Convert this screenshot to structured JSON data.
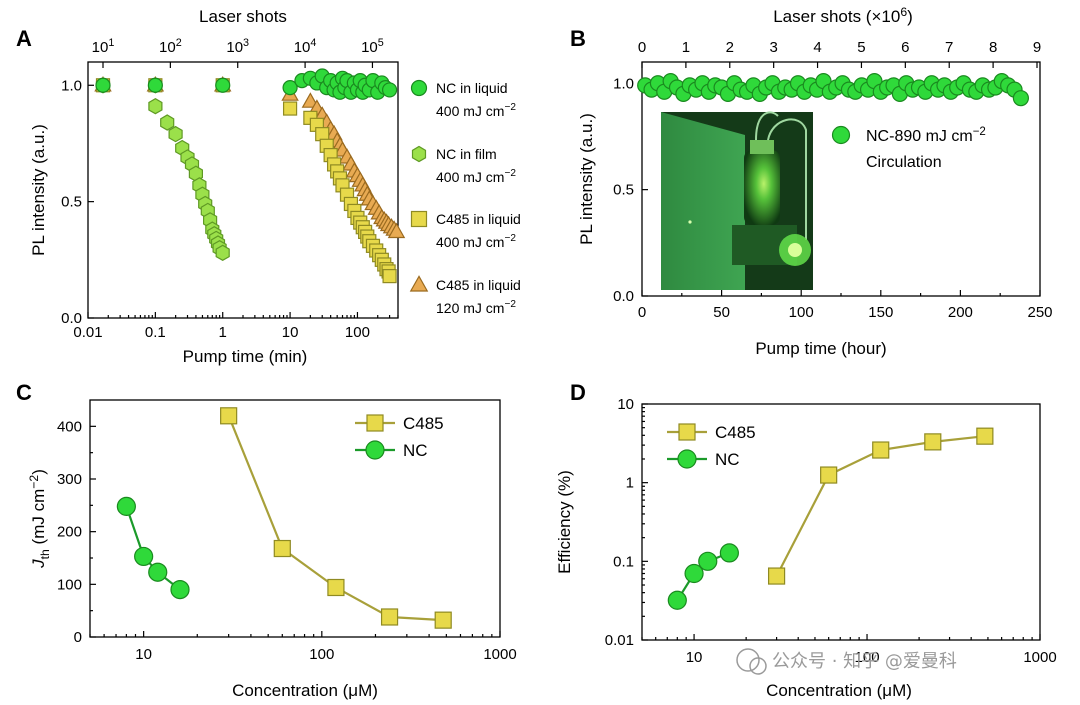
{
  "colors": {
    "nc": "#2fd93a",
    "nc_edge": "#1a8a1f",
    "ncfilm": "#9be04a",
    "ncfilm_edge": "#5f9a24",
    "c485": "#e7d94a",
    "c485_edge": "#8f8a22",
    "c485low": "#e8aa52",
    "c485low_edge": "#9a6a1f",
    "c485_line": "#a8a03a",
    "nc_line": "#1b9a2a"
  },
  "watermark": "公众号 · 知乎 @爱曼科",
  "chart_data": [
    {
      "panel": "A",
      "type": "scatter",
      "xlabel": "Pump time (min)",
      "ylabel": "PL intensity (a.u.)",
      "x2label": "Laser shots",
      "xscale": "log",
      "xlim": [
        0.01,
        400
      ],
      "ylim": [
        0,
        1.1
      ],
      "xticks": [
        "0.01",
        "0.1",
        "1",
        "10",
        "100"
      ],
      "yticks": [
        "0.0",
        "0.5",
        "1.0"
      ],
      "x2ticks": [
        {
          "b": "10",
          "e": "1"
        },
        {
          "b": "10",
          "e": "2"
        },
        {
          "b": "10",
          "e": "3"
        },
        {
          "b": "10",
          "e": "4"
        },
        {
          "b": "10",
          "e": "5"
        }
      ],
      "legend": [
        {
          "l1": "NC in liquid",
          "l2": "400 mJ cm",
          "sup": "−2"
        },
        {
          "l1": "NC in film",
          "l2": "400 mJ cm",
          "sup": "−2"
        },
        {
          "l1": "C485 in liquid",
          "l2": "400 mJ cm",
          "sup": "−2"
        },
        {
          "l1": "C485 in liquid",
          "l2": "120 mJ cm",
          "sup": "−2"
        }
      ],
      "series": [
        {
          "key": "nc_liquid",
          "marker": "circle",
          "x": [
            0.0167,
            0.1,
            1,
            10,
            15,
            20,
            25,
            30,
            35,
            40,
            45,
            50,
            55,
            60,
            65,
            70,
            80,
            90,
            100,
            110,
            120,
            130,
            150,
            170,
            200,
            230,
            260,
            300
          ],
          "y": [
            1.0,
            1.0,
            1.0,
            0.99,
            1.02,
            1.03,
            1.01,
            1.04,
            0.99,
            1.02,
            0.98,
            1.01,
            0.97,
            1.03,
            0.99,
            1.02,
            0.97,
            1.01,
            0.98,
            1.02,
            0.97,
            1.0,
            0.98,
            1.02,
            0.97,
            1.01,
            0.99,
            0.98
          ]
        },
        {
          "key": "nc_film",
          "marker": "hexagon",
          "x": [
            0.0167,
            0.1,
            0.1,
            0.15,
            0.2,
            0.25,
            0.3,
            0.35,
            0.4,
            0.45,
            0.5,
            0.55,
            0.6,
            0.65,
            0.7,
            0.75,
            0.8,
            0.85,
            0.9,
            1.0
          ],
          "y": [
            1.0,
            1.0,
            0.91,
            0.84,
            0.79,
            0.73,
            0.69,
            0.66,
            0.62,
            0.57,
            0.53,
            0.49,
            0.46,
            0.42,
            0.38,
            0.36,
            0.34,
            0.32,
            0.3,
            0.28
          ]
        },
        {
          "key": "c485_400",
          "marker": "square",
          "x": [
            0.0167,
            0.1,
            1,
            10,
            20,
            25,
            30,
            35,
            40,
            45,
            50,
            55,
            60,
            70,
            80,
            90,
            100,
            110,
            120,
            130,
            140,
            150,
            170,
            190,
            210,
            230,
            250,
            270,
            290,
            300
          ],
          "y": [
            1.0,
            1.0,
            1.0,
            0.9,
            0.86,
            0.83,
            0.79,
            0.74,
            0.7,
            0.66,
            0.63,
            0.6,
            0.57,
            0.53,
            0.49,
            0.46,
            0.43,
            0.41,
            0.39,
            0.37,
            0.35,
            0.33,
            0.31,
            0.29,
            0.27,
            0.25,
            0.23,
            0.21,
            0.2,
            0.18
          ]
        },
        {
          "key": "c485_120",
          "marker": "triangle",
          "x": [
            0.0167,
            0.1,
            1,
            10,
            20,
            25,
            30,
            35,
            40,
            45,
            50,
            55,
            60,
            70,
            80,
            90,
            100,
            110,
            120,
            130,
            140,
            150,
            170,
            190,
            210,
            230,
            250,
            270,
            290,
            320,
            350,
            380
          ],
          "y": [
            1.0,
            1.0,
            1.0,
            0.96,
            0.93,
            0.9,
            0.87,
            0.84,
            0.81,
            0.79,
            0.76,
            0.74,
            0.72,
            0.69,
            0.66,
            0.63,
            0.61,
            0.59,
            0.57,
            0.55,
            0.53,
            0.51,
            0.49,
            0.47,
            0.45,
            0.43,
            0.42,
            0.41,
            0.4,
            0.39,
            0.38,
            0.37
          ]
        }
      ]
    },
    {
      "panel": "B",
      "type": "scatter",
      "xlabel": "Pump time (hour)",
      "ylabel": "PL intensity (a.u.)",
      "x2label": "Laser shots (×10",
      "x2label_sup": "6",
      "x2label_end": ")",
      "xlim": [
        0,
        250
      ],
      "ylim": [
        0,
        1.1
      ],
      "x2lim": [
        0,
        9
      ],
      "xticks": [
        "0",
        "50",
        "100",
        "150",
        "200",
        "250"
      ],
      "yticks": [
        "0.0",
        "0.5",
        "1.0"
      ],
      "x2ticks": [
        "0",
        "1",
        "2",
        "3",
        "4",
        "5",
        "6",
        "7",
        "8",
        "9"
      ],
      "legend": [
        {
          "l1": "NC-890 mJ cm",
          "sup": "−2",
          "l2": "Circulation"
        }
      ],
      "series": [
        {
          "key": "nc_circ",
          "marker": "circle",
          "x": [
            2,
            6,
            10,
            14,
            18,
            22,
            26,
            30,
            34,
            38,
            42,
            46,
            50,
            54,
            58,
            62,
            66,
            70,
            74,
            78,
            82,
            86,
            90,
            94,
            98,
            102,
            106,
            110,
            114,
            118,
            122,
            126,
            130,
            134,
            138,
            142,
            146,
            150,
            154,
            158,
            162,
            166,
            170,
            174,
            178,
            182,
            186,
            190,
            194,
            198,
            202,
            206,
            210,
            214,
            218,
            222,
            226,
            230,
            234,
            238
          ],
          "y": [
            0.99,
            0.97,
            1.0,
            0.96,
            1.01,
            0.98,
            0.95,
            0.99,
            0.97,
            1.0,
            0.96,
            0.99,
            0.98,
            0.95,
            1.0,
            0.97,
            0.96,
            0.99,
            0.95,
            0.98,
            1.0,
            0.96,
            0.98,
            0.97,
            1.0,
            0.96,
            0.99,
            0.97,
            1.01,
            0.96,
            0.98,
            1.0,
            0.97,
            0.96,
            0.99,
            0.97,
            1.01,
            0.96,
            0.98,
            0.99,
            0.95,
            1.0,
            0.97,
            0.98,
            0.96,
            1.0,
            0.97,
            0.99,
            0.96,
            0.98,
            1.0,
            0.97,
            0.96,
            0.99,
            0.97,
            0.98,
            1.01,
            0.99,
            0.97,
            0.93
          ]
        }
      ]
    },
    {
      "panel": "C",
      "type": "line",
      "xlabel": "Concentration (μM)",
      "ylabel_main": "J",
      "ylabel_sub": "th",
      "ylabel_rest": " (mJ cm",
      "ylabel_sup": "−2",
      "ylabel_end": ")",
      "xscale": "log",
      "xlim": [
        5,
        1000
      ],
      "ylim": [
        0,
        450
      ],
      "xticks": [
        "10",
        "100",
        "1000"
      ],
      "yticks": [
        "0",
        "100",
        "200",
        "300",
        "400"
      ],
      "series": [
        {
          "name": "C485",
          "marker": "square",
          "x": [
            30,
            60,
            120,
            240,
            480
          ],
          "y": [
            420,
            168,
            94,
            38,
            32
          ]
        },
        {
          "name": "NC",
          "marker": "circle",
          "x": [
            8,
            10,
            12,
            16
          ],
          "y": [
            248,
            153,
            123,
            90
          ]
        }
      ]
    },
    {
      "panel": "D",
      "type": "line",
      "xlabel": "Concentration (μM)",
      "ylabel": "Efficiency (%)",
      "xscale": "log",
      "yscale": "log",
      "xlim": [
        5,
        1000
      ],
      "ylim": [
        0.01,
        10
      ],
      "xticks": [
        "10",
        "100",
        "1000"
      ],
      "yticks": [
        "0.01",
        "0.1",
        "1",
        "10"
      ],
      "series": [
        {
          "name": "C485",
          "marker": "square",
          "x": [
            30,
            60,
            120,
            240,
            480
          ],
          "y": [
            0.065,
            1.25,
            2.6,
            3.3,
            3.9
          ]
        },
        {
          "name": "NC",
          "marker": "circle",
          "x": [
            8,
            10,
            12,
            16
          ],
          "y": [
            0.032,
            0.07,
            0.1,
            0.128
          ]
        }
      ]
    }
  ]
}
